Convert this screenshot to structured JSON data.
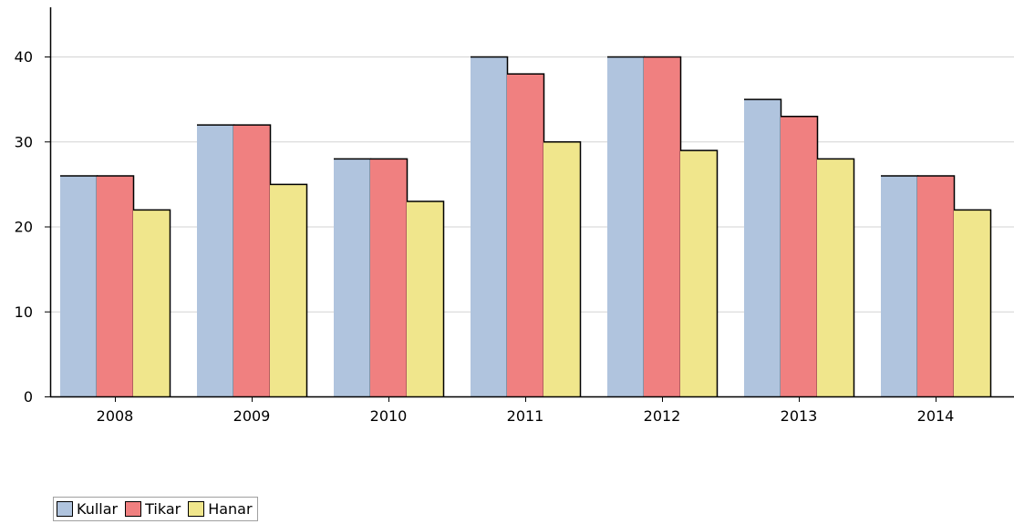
{
  "chart_data": {
    "type": "bar",
    "categories": [
      "2008",
      "2009",
      "2010",
      "2011",
      "2012",
      "2013",
      "2014"
    ],
    "series": [
      {
        "name": "Kullar",
        "color": "#b0c4de",
        "values": [
          26,
          32,
          28,
          40,
          40,
          35,
          26
        ]
      },
      {
        "name": "Tikar",
        "color": "#f08080",
        "values": [
          26,
          32,
          28,
          38,
          40,
          33,
          26
        ]
      },
      {
        "name": "Hanar",
        "color": "#f0e68c",
        "values": [
          22,
          25,
          23,
          30,
          29,
          28,
          22
        ]
      }
    ],
    "yticks": [
      "0",
      "10",
      "20",
      "30",
      "40"
    ],
    "ylim": [
      0,
      40
    ],
    "grid": true,
    "legend_position": "bottom-left"
  }
}
